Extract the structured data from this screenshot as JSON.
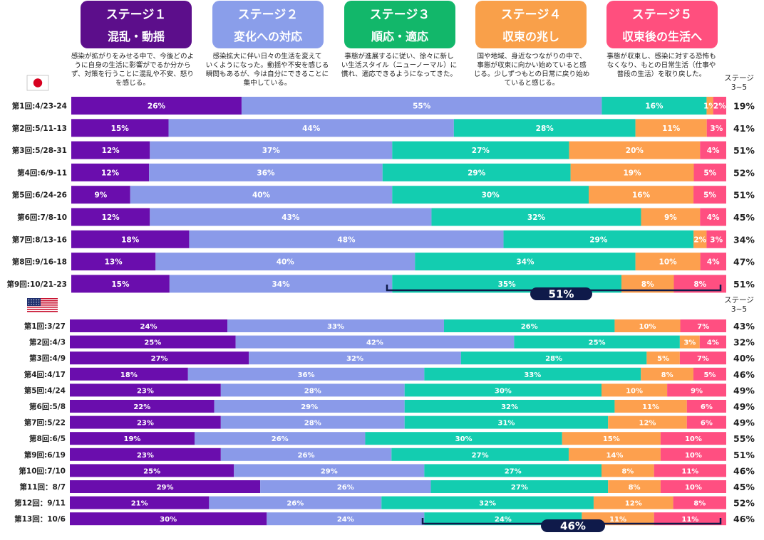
{
  "stages": [
    {
      "title1": "ステージ１",
      "title2": "混乱・動揺",
      "color": "#5C0E8B",
      "desc": [
        "感染が拡がりをみせる中で、今後どのよ",
        "うに自身の生活に影響がでるか分から",
        "ず、対策を行うことに混乱や不安、怒り",
        "を感じる。"
      ]
    },
    {
      "title1": "ステージ２",
      "title2": "変化への対応",
      "color": "#8A9EEA",
      "desc": [
        "感染拡大に伴い日々の生活を変えて",
        "いくようになった。動揺や不安を感じる",
        "瞬間もあるが、今は自分にできることに",
        "集中している。"
      ]
    },
    {
      "title1": "ステージ３",
      "title2": "順応・適応",
      "color": "#12B76A",
      "desc": [
        "事態が進展するに従い、徐々に新し",
        "い生活スタイル（ニューノーマル）に",
        "慣れ、適応できるようになってきた。"
      ]
    },
    {
      "title1": "ステージ４",
      "title2": "収束の兆し",
      "color": "#F9A04A",
      "desc": [
        "国や地域、身近なつながりの中で、",
        "事態が収束に向かい始めていると感",
        "じる。少しずつもとの日常に戻り始め",
        "ていると感じる。"
      ]
    },
    {
      "title1": "ステージ５",
      "title2": "収束後の生活へ",
      "color": "#FF4F7E",
      "desc": [
        "事態が収束し、感染に対する恐怖も",
        "なくなり、もとの日常生活（仕事や",
        "普段の生活）を取り戻した。"
      ]
    }
  ],
  "legend_colors": [
    "#6A0DAD",
    "#8A9AE9",
    "#13CDB0",
    "#FDA04E",
    "#FF4F81"
  ],
  "chart_data": [
    {
      "type": "bar",
      "stacked": true,
      "orientation": "horizontal",
      "group": "japan",
      "col_header": [
        "ステージ",
        "3~5"
      ],
      "categories": [
        "第1回:4/23-24",
        "第2回:5/11-13",
        "第3回:5/28-31",
        "第4回:6/9-11",
        "第5回:6/24-26",
        "第6回:7/8-10",
        "第7回:8/13-16",
        "第8回:9/16-18",
        "第9回:10/21-23"
      ],
      "series": [
        {
          "name": "ステージ１",
          "values": [
            26,
            15,
            12,
            12,
            9,
            12,
            18,
            13,
            15
          ]
        },
        {
          "name": "ステージ２",
          "values": [
            55,
            44,
            37,
            36,
            40,
            43,
            48,
            40,
            34
          ]
        },
        {
          "name": "ステージ３",
          "values": [
            16,
            28,
            27,
            29,
            30,
            32,
            29,
            34,
            35
          ]
        },
        {
          "name": "ステージ４",
          "values": [
            1,
            11,
            20,
            19,
            16,
            9,
            2,
            10,
            8
          ]
        },
        {
          "name": "ステージ５",
          "values": [
            2,
            3,
            4,
            5,
            5,
            4,
            3,
            4,
            8
          ]
        }
      ],
      "totals_3_5": [
        "19%",
        "41%",
        "51%",
        "52%",
        "51%",
        "45%",
        "34%",
        "47%",
        "51%"
      ],
      "highlight": "51%"
    },
    {
      "type": "bar",
      "stacked": true,
      "orientation": "horizontal",
      "group": "usa",
      "col_header": [
        "ステージ",
        "3~5"
      ],
      "categories": [
        "第1回:3/27",
        "第2回:4/3",
        "第3回:4/9",
        "第4回:4/17",
        "第5回:4/24",
        "第6回:5/8",
        "第7回:5/22",
        "第8回:6/5",
        "第9回:6/19",
        "第10回:7/10",
        "第11回：8/7",
        "第12回：9/11",
        "第13回：10/6"
      ],
      "series": [
        {
          "name": "ステージ１",
          "values": [
            24,
            25,
            27,
            18,
            23,
            22,
            23,
            19,
            23,
            25,
            29,
            21,
            30
          ]
        },
        {
          "name": "ステージ２",
          "values": [
            33,
            42,
            32,
            36,
            28,
            29,
            28,
            26,
            26,
            29,
            26,
            26,
            24
          ]
        },
        {
          "name": "ステージ３",
          "values": [
            26,
            25,
            28,
            33,
            30,
            32,
            31,
            30,
            27,
            27,
            27,
            32,
            24
          ]
        },
        {
          "name": "ステージ４",
          "values": [
            10,
            3,
            5,
            8,
            10,
            11,
            12,
            15,
            14,
            8,
            8,
            12,
            11
          ]
        },
        {
          "name": "ステージ５",
          "values": [
            7,
            4,
            7,
            5,
            9,
            6,
            6,
            10,
            10,
            11,
            10,
            8,
            11
          ]
        }
      ],
      "totals_3_5": [
        "43%",
        "32%",
        "40%",
        "46%",
        "49%",
        "49%",
        "49%",
        "55%",
        "51%",
        "46%",
        "45%",
        "52%",
        "46%"
      ],
      "highlight": "46%"
    }
  ]
}
